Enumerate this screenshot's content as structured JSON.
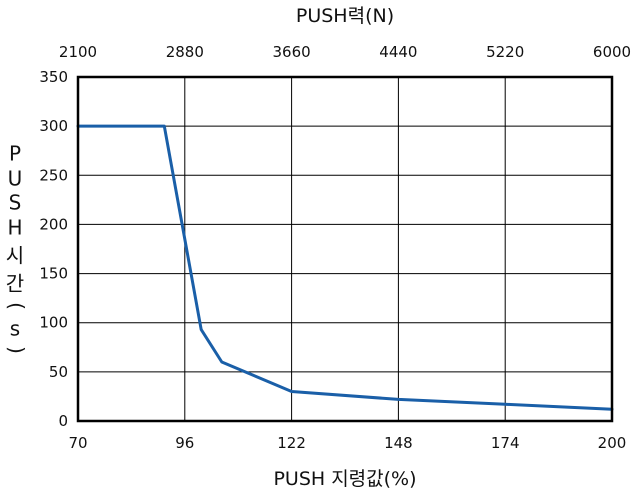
{
  "chart_data": {
    "type": "line",
    "title": "",
    "xlabel": "PUSH 지령값(%)",
    "x2label": "PUSH력(N)",
    "ylabel": "PUSH시간(s)",
    "ylabel_chars": [
      "P",
      "U",
      "S",
      "H",
      "시",
      "간",
      "(",
      "s",
      ")"
    ],
    "xlim": [
      70,
      200
    ],
    "ylim": [
      0,
      350
    ],
    "x_ticks": [
      70,
      96,
      122,
      148,
      174,
      200
    ],
    "x2_ticks": [
      2100,
      2880,
      3660,
      4440,
      5220,
      6000
    ],
    "y_ticks": [
      0,
      50,
      100,
      150,
      200,
      250,
      300,
      350
    ],
    "grid": true,
    "line_color": "#1a5fa8",
    "series": [
      {
        "name": "",
        "x": [
          70,
          91,
          100,
          105,
          122,
          148,
          174,
          200
        ],
        "y": [
          300,
          300,
          93,
          60,
          30,
          22,
          17,
          12
        ]
      }
    ]
  }
}
